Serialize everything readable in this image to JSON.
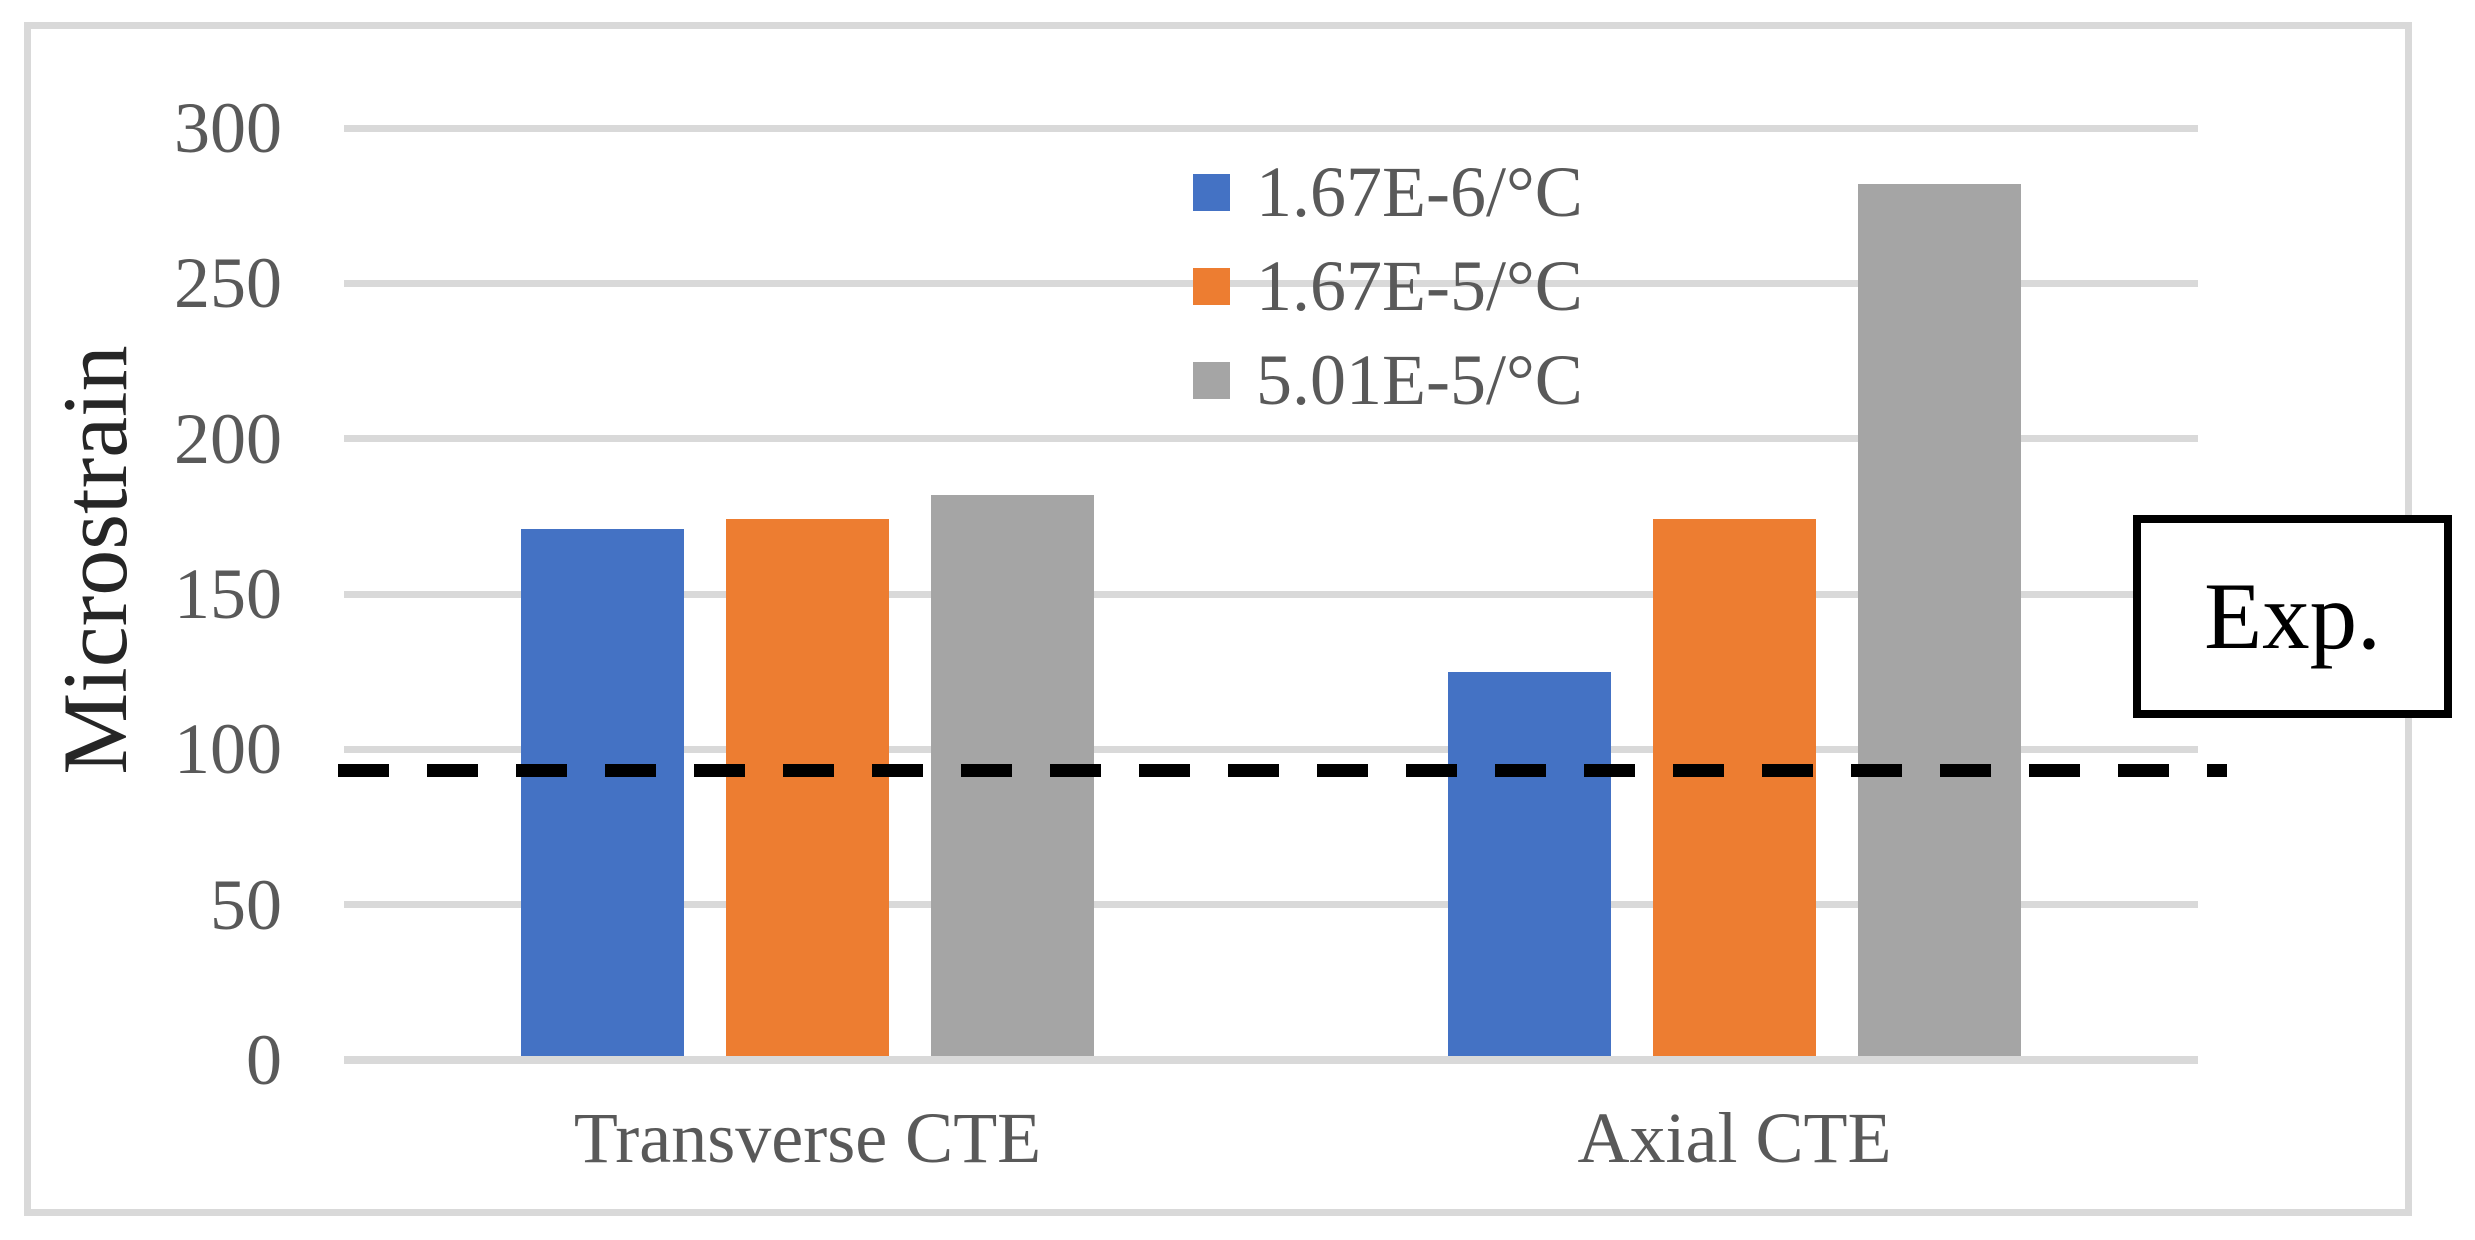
{
  "chart_data": {
    "type": "bar",
    "title": "",
    "ylabel": "Microstrain",
    "xlabel": "",
    "categories": [
      "Transverse CTE",
      "Axial CTE"
    ],
    "series": [
      {
        "name": "1.67E-6/°C",
        "color": "#4472C4",
        "values": [
          171,
          125
        ]
      },
      {
        "name": "1.67E-5/°C",
        "color": "#ED7D31",
        "values": [
          174,
          174
        ]
      },
      {
        "name": "5.01E-5/°C",
        "color": "#A5A5A5",
        "values": [
          182,
          282
        ]
      }
    ],
    "yticks": [
      0,
      50,
      100,
      150,
      200,
      250,
      300
    ],
    "ylim": [
      0,
      300
    ],
    "grid": "horizontal",
    "gridline_color": "#D9D9D9",
    "tick_label_color": "#595959",
    "legend_position": "top-center-inside",
    "reference_line": {
      "label": "Exp.",
      "value": 93,
      "style": "dashed",
      "color": "#000000"
    }
  }
}
